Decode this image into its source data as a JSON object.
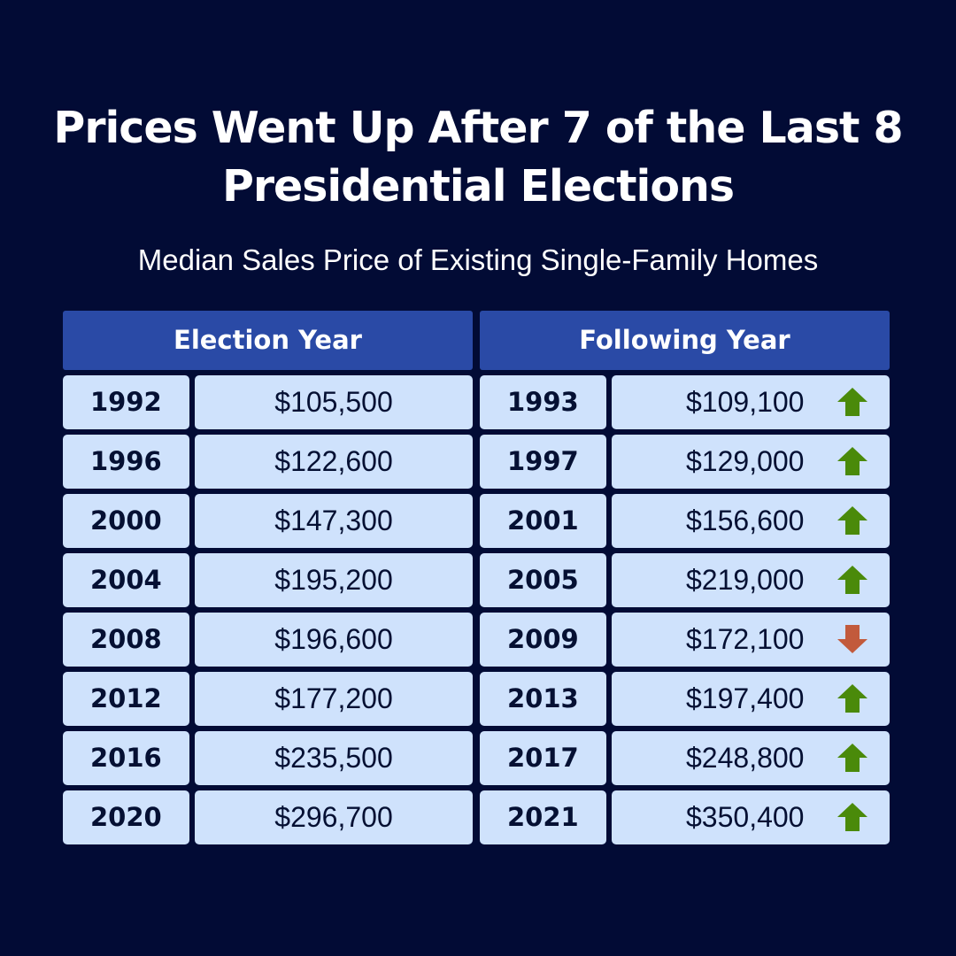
{
  "title_line1": "Prices Went Up After 7 of the Last 8",
  "title_line2": "Presidential Elections",
  "subtitle": "Median Sales Price of Existing Single-Family Homes",
  "colors": {
    "background": "#020b35",
    "header": "#2a4aa6",
    "cell": "#cfe2fc",
    "up_arrow": "#4a8a0a",
    "down_arrow": "#c25a3c"
  },
  "chart_data": {
    "type": "table",
    "columns": [
      "Election Year",
      "Following Year"
    ],
    "rows": [
      {
        "election_year": "1992",
        "election_price": "$105,500",
        "following_year": "1993",
        "following_price": "$109,100",
        "direction": "up"
      },
      {
        "election_year": "1996",
        "election_price": "$122,600",
        "following_year": "1997",
        "following_price": "$129,000",
        "direction": "up"
      },
      {
        "election_year": "2000",
        "election_price": "$147,300",
        "following_year": "2001",
        "following_price": "$156,600",
        "direction": "up"
      },
      {
        "election_year": "2004",
        "election_price": "$195,200",
        "following_year": "2005",
        "following_price": "$219,000",
        "direction": "up"
      },
      {
        "election_year": "2008",
        "election_price": "$196,600",
        "following_year": "2009",
        "following_price": "$172,100",
        "direction": "down"
      },
      {
        "election_year": "2012",
        "election_price": "$177,200",
        "following_year": "2013",
        "following_price": "$197,400",
        "direction": "up"
      },
      {
        "election_year": "2016",
        "election_price": "$235,500",
        "following_year": "2017",
        "following_price": "$248,800",
        "direction": "up"
      },
      {
        "election_year": "2020",
        "election_price": "$296,700",
        "following_year": "2021",
        "following_price": "$350,400",
        "direction": "up"
      }
    ]
  }
}
